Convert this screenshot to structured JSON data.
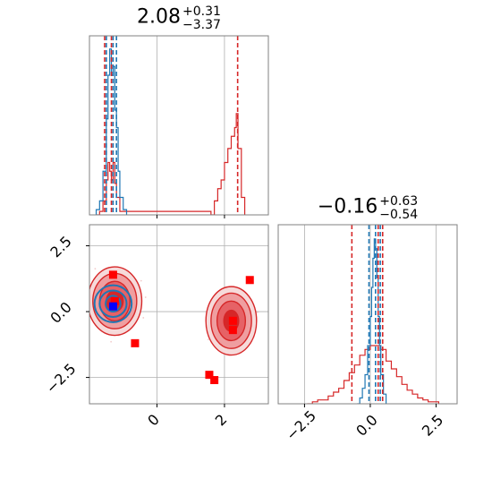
{
  "chart_data": [
    {
      "type": "area",
      "panel": "top-left histogram",
      "title": {
        "value": "2.08",
        "plus": "+0.31",
        "minus": "−3.37"
      },
      "xlim": [
        -2.0,
        3.3
      ],
      "blue_hist": {
        "x": [
          -1.8,
          -1.7,
          -1.6,
          -1.5,
          -1.45,
          -1.4,
          -1.35,
          -1.3,
          -1.25,
          -1.2,
          -1.15,
          -1.1,
          -1.0,
          -0.9
        ],
        "y": [
          0.03,
          0.08,
          0.25,
          0.55,
          0.8,
          0.95,
          0.8,
          0.85,
          0.6,
          0.5,
          0.25,
          0.1,
          0.03,
          0.0
        ]
      },
      "red_hist": {
        "x": [
          -1.8,
          -1.7,
          -1.6,
          -1.5,
          -1.45,
          -1.4,
          -1.35,
          -1.3,
          -1.25,
          -1.2,
          -1.1,
          1.6,
          1.7,
          1.8,
          1.9,
          2.0,
          2.1,
          2.2,
          2.3,
          2.35,
          2.4,
          2.5,
          2.6
        ],
        "y": [
          0.0,
          0.02,
          0.08,
          0.2,
          0.3,
          0.25,
          0.2,
          0.3,
          0.18,
          0.1,
          0.02,
          0.0,
          0.08,
          0.15,
          0.2,
          0.3,
          0.38,
          0.45,
          0.5,
          0.58,
          0.38,
          0.1,
          0.0
        ]
      },
      "red_vlines": [
        -1.55,
        -1.35,
        2.39
      ],
      "blue_vlines": [
        -1.5,
        -1.3,
        -1.2
      ]
    },
    {
      "type": "scatter",
      "panel": "bottom-left 2D",
      "xlim": [
        -2.0,
        3.3
      ],
      "ylim": [
        -3.5,
        3.3
      ],
      "xticks": [
        "0",
        "2"
      ],
      "xtick_values": [
        0,
        2
      ],
      "yticks": [
        "2.5",
        "0.0",
        "−2.5"
      ],
      "ytick_values": [
        2.5,
        0.0,
        -2.5
      ],
      "red_markers": [
        [
          -1.3,
          1.4
        ],
        [
          -1.25,
          0.4
        ],
        [
          -0.65,
          -1.2
        ],
        [
          2.25,
          -0.35
        ],
        [
          2.25,
          -0.7
        ],
        [
          2.75,
          1.2
        ],
        [
          1.55,
          -2.4
        ],
        [
          1.7,
          -2.6
        ]
      ],
      "blue_marker": [
        -1.3,
        0.2
      ],
      "contours_red_left": {
        "cx": -1.25,
        "cy": 0.4,
        "levels": [
          [
            0.8,
            1.3
          ],
          [
            0.65,
            1.05
          ],
          [
            0.45,
            0.75
          ],
          [
            0.25,
            0.4
          ]
        ]
      },
      "contours_red_right": {
        "cx": 2.2,
        "cy": -0.35,
        "levels": [
          [
            0.75,
            1.3
          ],
          [
            0.6,
            1.05
          ],
          [
            0.42,
            0.75
          ],
          [
            0.22,
            0.4
          ]
        ]
      },
      "contours_blue": {
        "cx": -1.3,
        "cy": 0.3,
        "levels": [
          [
            0.55,
            0.7
          ],
          [
            0.4,
            0.5
          ],
          [
            0.22,
            0.3
          ]
        ]
      }
    },
    {
      "type": "area",
      "panel": "bottom-right histogram",
      "title": {
        "value": "−0.16",
        "plus": "+0.63",
        "minus": "−0.54"
      },
      "xlim": [
        -3.5,
        3.3
      ],
      "xticks": [
        "−2.5",
        "0.0",
        "2.5"
      ],
      "xtick_values": [
        -2.5,
        0.0,
        2.5
      ],
      "blue_hist": {
        "x": [
          -0.5,
          -0.4,
          -0.3,
          -0.2,
          -0.1,
          0.0,
          0.05,
          0.1,
          0.15,
          0.2,
          0.25,
          0.3,
          0.35,
          0.4,
          0.5,
          0.6
        ],
        "y": [
          0.0,
          0.03,
          0.08,
          0.15,
          0.3,
          0.45,
          0.6,
          0.75,
          0.85,
          0.8,
          0.65,
          0.45,
          0.3,
          0.15,
          0.05,
          0.0
        ]
      },
      "red_hist": {
        "x": [
          -2.4,
          -2.2,
          -2.0,
          -1.8,
          -1.6,
          -1.4,
          -1.2,
          -1.0,
          -0.8,
          -0.6,
          -0.4,
          -0.2,
          0.0,
          0.2,
          0.4,
          0.6,
          0.8,
          1.0,
          1.2,
          1.4,
          1.6,
          1.8,
          2.0,
          2.2,
          2.4,
          2.6
        ],
        "y": [
          0.0,
          0.01,
          0.02,
          0.02,
          0.04,
          0.06,
          0.08,
          0.12,
          0.16,
          0.2,
          0.25,
          0.28,
          0.3,
          0.3,
          0.28,
          0.22,
          0.18,
          0.14,
          0.1,
          0.07,
          0.05,
          0.03,
          0.02,
          0.01,
          0.01,
          0.0
        ]
      },
      "red_vlines": [
        -0.7,
        0.3,
        0.47
      ],
      "blue_vlines": [
        -0.05,
        0.2,
        0.38
      ]
    }
  ],
  "colors": {
    "red": "#d62728",
    "blue": "#1f77b4",
    "marker_red": "#ff0000",
    "marker_blue": "#0000ff",
    "grid": "#b0b0b0",
    "spine": "#808080"
  }
}
